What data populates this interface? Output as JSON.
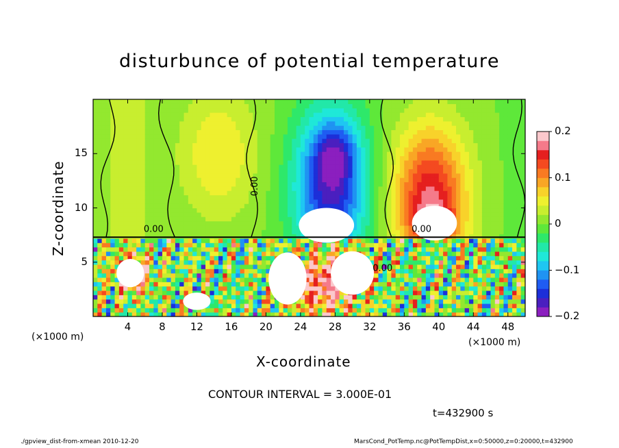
{
  "chart_data": {
    "type": "heatmap",
    "title": "disturbunce of potential temperature",
    "xlabel": "X-coordinate",
    "ylabel": "Z-coordinate",
    "x_unit_left": "(×1000 m)",
    "x_unit_right": "(×1000 m)",
    "xlim": [
      0,
      50
    ],
    "ylim": [
      0,
      20
    ],
    "x_ticks": [
      "4",
      "8",
      "12",
      "16",
      "20",
      "24",
      "28",
      "32",
      "36",
      "40",
      "44",
      "48"
    ],
    "y_ticks": [
      "5",
      "10",
      "15"
    ],
    "colorbar": {
      "range": [
        -0.2,
        0.2
      ],
      "tick_labels": [
        "0.2",
        "0.1",
        "0",
        "−0.1",
        "−0.2"
      ],
      "colors": [
        "#8b1fbf",
        "#4a1fbf",
        "#1c2fd9",
        "#1f5cf2",
        "#1f93f2",
        "#1fc6f2",
        "#1fe8d8",
        "#22e8a8",
        "#2ee86a",
        "#5ee83a",
        "#93e82f",
        "#c8ee2f",
        "#eef02f",
        "#f8d22a",
        "#f9a625",
        "#f97a22",
        "#f44a20",
        "#e51f1f",
        "#f57a8a",
        "#fbc8cc"
      ],
      "contour_labels": [
        "0.00",
        "0.00",
        "0.00",
        "0.00"
      ]
    },
    "field": {
      "upper_layer_top_km": 7.3,
      "features": [
        {
          "x": 4,
          "z": 13,
          "value": 0.02
        },
        {
          "x": 14.5,
          "z": 15,
          "value": 0.06
        },
        {
          "x": 27,
          "z": 12,
          "value": -0.18
        },
        {
          "x": 28,
          "z": 15,
          "value": -0.2
        },
        {
          "x": 39,
          "z": 12,
          "value": 0.17
        },
        {
          "x": 39,
          "z": 8.5,
          "value": 0.2
        }
      ]
    }
  },
  "annotations": {
    "contour_interval": "CONTOUR INTERVAL = 3.000E-01",
    "time": "t=432900 s",
    "footer_left": "./gpview_dist-from-xmean  2010-12-20",
    "footer_right": "MarsCond_PotTemp.nc@PotTempDist,x=0:50000,z=0:20000,t=432900"
  }
}
